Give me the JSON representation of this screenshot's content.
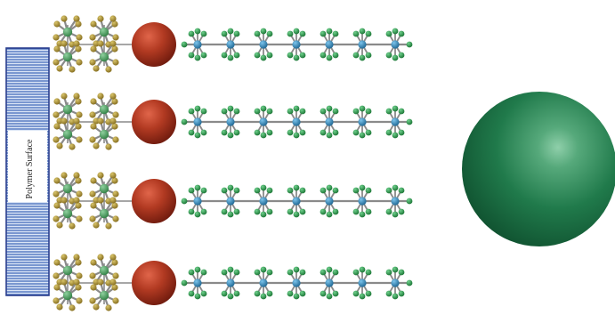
{
  "substrate": {
    "label": "Polymer Surface"
  },
  "colors": {
    "substrate_border": "#2a3e8e",
    "substrate_hatch": "#3a63b7",
    "substrate_fill": "#dbe5f6",
    "linker_atom": "#a88e30",
    "linker_core": "#3e9a55",
    "bond": "#8a8a8a",
    "junction_sphere": "#a8321d",
    "chain_backbone": "#2c86b8",
    "chain_side_atom": "#1e8a3b",
    "large_sphere": "#207a4b"
  },
  "molecule_rows": 4,
  "chain_units_per_row": 7
}
